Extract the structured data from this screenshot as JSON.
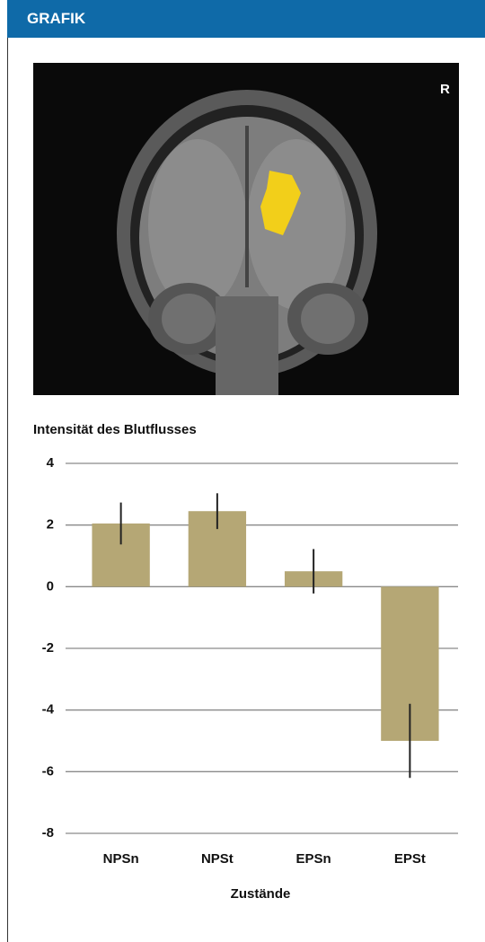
{
  "header": {
    "title": "GRAFIK"
  },
  "image": {
    "label": "R"
  },
  "chart_data": {
    "type": "bar",
    "ylabel": "Intensität des Blutflusses",
    "xlabel": "Zustände",
    "categories": [
      "NPSn",
      "NPSt",
      "EPSn",
      "EPSt"
    ],
    "values": [
      2.05,
      2.45,
      0.5,
      -5.0
    ],
    "errors": [
      0.68,
      0.58,
      0.72,
      1.2
    ],
    "color": "#b5a775",
    "ylim": [
      -8,
      4
    ],
    "yticks": [
      4,
      2,
      0,
      -2,
      -4,
      -6,
      -8
    ],
    "grid": true
  }
}
